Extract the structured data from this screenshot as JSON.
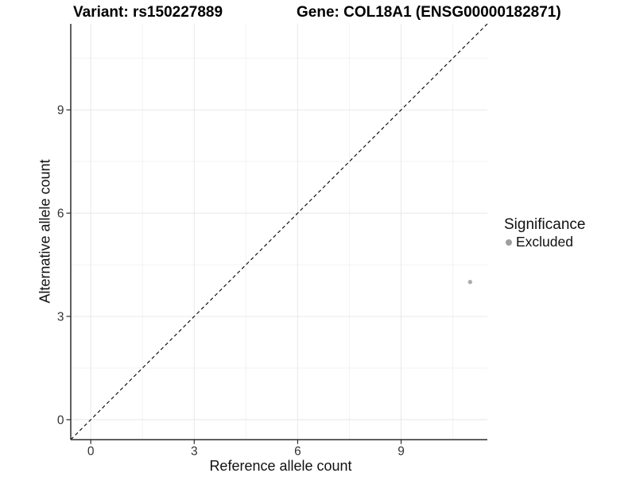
{
  "chart_data": {
    "type": "scatter",
    "titles": {
      "left": "Variant: rs150227889",
      "right": "Gene: COL18A1 (ENSG00000182871)"
    },
    "xlabel": "Reference allele count",
    "ylabel": "Alternative allele count",
    "xlim": [
      -0.58,
      11.5
    ],
    "ylim": [
      -0.58,
      11.5
    ],
    "x_ticks": [
      0,
      3,
      6,
      9
    ],
    "y_ticks": [
      0,
      3,
      6,
      9
    ],
    "minor_ticks": [
      1.5,
      4.5,
      7.5,
      10.5
    ],
    "grid": true,
    "series": [
      {
        "name": "Excluded",
        "color": "#adadad",
        "point_radius": 2.7,
        "points": [
          {
            "x": 11,
            "y": 4
          }
        ]
      }
    ],
    "identity_line": {
      "style": "dashed",
      "color": "#000000",
      "from": "panel-bottom-left",
      "to": "panel-top-right"
    },
    "legend": {
      "title": "Significance",
      "position": "right",
      "items": [
        {
          "label": "Excluded",
          "color": "#9e9e9e"
        }
      ]
    },
    "style": {
      "axis_color": "#2b2b2b",
      "tick_label_color": "#333333",
      "grid_major": "#e8e8e8",
      "grid_minor": "#f2f2f2",
      "background": "#ffffff"
    }
  }
}
